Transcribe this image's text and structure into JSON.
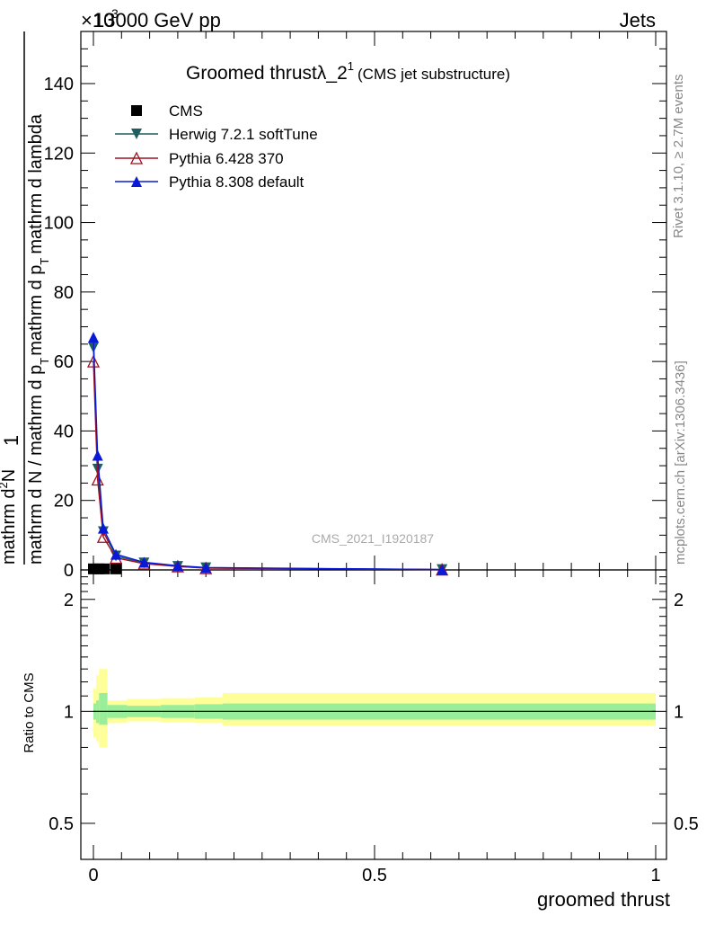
{
  "header": {
    "left": "13000 GeV pp",
    "right": "Jets",
    "exponent_prefix": "×10",
    "exponent": "3"
  },
  "side": {
    "rivet": "Rivet 3.1.10, ≥ 2.7M events",
    "mcplots": "mcplots.cern.ch [arXiv:1306.3436]"
  },
  "plot_title": {
    "main": "Groomed thrustλ_2",
    "superscript": "1",
    "sub": "(CMS jet substructure)"
  },
  "watermark": "CMS_2021_I1920187",
  "ylabel": {
    "one": "1",
    "denominator": "mathrm d N / mathrm d p",
    "denominator_sub": "T",
    "numerator_part1": "mathrm d",
    "numerator_sup": "2",
    "numerator_part2": "N",
    "denominator2": "mathrm d p",
    "denominator2_sub": "T",
    "denominator2_end": "mathrm d lambda"
  },
  "ratio_ylabel": "Ratio to CMS",
  "xlabel": "groomed thrust",
  "colors": {
    "cms": "#000000",
    "herwig": "#1f5f5f",
    "pythia6": "#a01020",
    "pythia8": "#0a18d8",
    "band_inner": "#99ee99",
    "band_outer": "#ffff99"
  },
  "chart_data": [
    {
      "type": "line",
      "name": "main",
      "xlim": [
        -0.02,
        1.02
      ],
      "ylim": [
        0,
        155
      ],
      "ytick_values": [
        0,
        20,
        40,
        60,
        80,
        100,
        120,
        140
      ],
      "ytick_labels": [
        "0",
        "20",
        "40",
        "60",
        "80",
        "100",
        "120",
        "140"
      ],
      "legend_position": "top-left",
      "series": [
        {
          "name": "CMS",
          "key": "cms",
          "marker": "square",
          "x": [
            0.0,
            0.01,
            0.02,
            0.04
          ],
          "y": [
            0.3,
            0.3,
            0.3,
            0.3
          ]
        },
        {
          "name": "Herwig 7.2.1 softTune",
          "key": "herwig",
          "marker": "triangle-down",
          "x": [
            0.0,
            0.0075,
            0.0175,
            0.04,
            0.09,
            0.15,
            0.2,
            0.62
          ],
          "y": [
            64,
            29,
            11,
            4,
            2,
            1,
            0.6,
            0.1
          ]
        },
        {
          "name": "Pythia 6.428 370",
          "key": "pythia6",
          "marker": "triangle-open",
          "x": [
            0.0,
            0.0075,
            0.0175,
            0.04,
            0.09,
            0.15,
            0.2,
            0.62
          ],
          "y": [
            60,
            26,
            9.5,
            3.5,
            1.8,
            1,
            0.5,
            0.1
          ]
        },
        {
          "name": "Pythia 8.308 default",
          "key": "pythia8",
          "marker": "triangle-up",
          "x": [
            0.0,
            0.0075,
            0.0175,
            0.04,
            0.09,
            0.15,
            0.2,
            0.62
          ],
          "y": [
            67,
            33,
            12,
            4.5,
            2.2,
            1.2,
            0.7,
            0.1
          ]
        }
      ]
    },
    {
      "type": "area",
      "name": "ratio",
      "xlim": [
        -0.02,
        1.02
      ],
      "ylim": [
        0.4,
        2.4
      ],
      "scale": "log",
      "ytick_values": [
        0.5,
        1,
        2
      ],
      "ytick_labels": [
        "0.5",
        "1",
        "2"
      ],
      "xtick_values": [
        0,
        0.5,
        1
      ],
      "xtick_labels": [
        "0",
        "0.5",
        "1"
      ],
      "bands": {
        "edges": [
          0.0,
          0.005,
          0.01,
          0.025,
          0.06,
          0.12,
          0.18,
          0.23,
          1.0
        ],
        "inner_low": [
          0.95,
          0.93,
          0.92,
          0.96,
          0.965,
          0.96,
          0.955,
          0.95
        ],
        "inner_high": [
          1.05,
          1.07,
          1.12,
          1.04,
          1.035,
          1.04,
          1.045,
          1.05
        ],
        "outer_low": [
          0.85,
          0.83,
          0.8,
          0.93,
          0.94,
          0.935,
          0.93,
          0.915
        ],
        "outer_high": [
          1.15,
          1.25,
          1.3,
          1.07,
          1.08,
          1.085,
          1.09,
          1.12
        ]
      },
      "reference": 1
    }
  ]
}
